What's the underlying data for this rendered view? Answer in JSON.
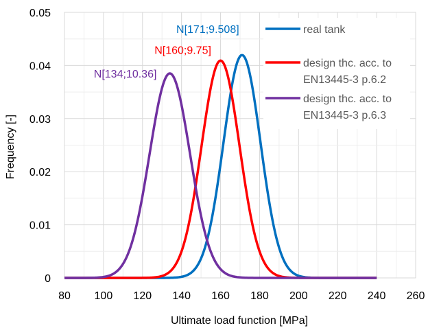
{
  "chart_data": {
    "type": "line",
    "title": "",
    "xlabel": "Ultimate load function [MPa]",
    "ylabel": "Frequency [-]",
    "xlim": [
      80,
      260
    ],
    "ylim": [
      0,
      0.05
    ],
    "x_ticks": [
      80,
      100,
      120,
      140,
      160,
      180,
      200,
      220,
      240,
      260
    ],
    "y_ticks": [
      0,
      0.01,
      0.02,
      0.03,
      0.04,
      0.05
    ],
    "x_tick_labels": [
      "80",
      "100",
      "120",
      "140",
      "160",
      "180",
      "200",
      "220",
      "240",
      "260"
    ],
    "y_tick_labels": [
      "0",
      "0.01",
      "0.02",
      "0.03",
      "0.04",
      "0.05"
    ],
    "grid": true,
    "legend_position": "top-right",
    "x_range_plotted": [
      80,
      240
    ],
    "series": [
      {
        "name": "real tank",
        "distribution": "normal",
        "mean": 171,
        "std": 9.508,
        "color": "#0070C0",
        "annotation": "N[171;9.508]"
      },
      {
        "name": "design thc. acc. to EN13445-3 p.6.2",
        "legend_lines": [
          "design thc. acc. to",
          "EN13445-3 p.6.2"
        ],
        "distribution": "normal",
        "mean": 160,
        "std": 9.75,
        "color": "#FF0000",
        "annotation": "N[160;9.75]"
      },
      {
        "name": "design thc. acc. to EN13445-3 p.6.3",
        "legend_lines": [
          "design thc. acc. to",
          "EN13445-3 p.6.3"
        ],
        "distribution": "normal",
        "mean": 134,
        "std": 10.36,
        "color": "#7030A0",
        "annotation": "N[134;10.36]"
      }
    ]
  }
}
